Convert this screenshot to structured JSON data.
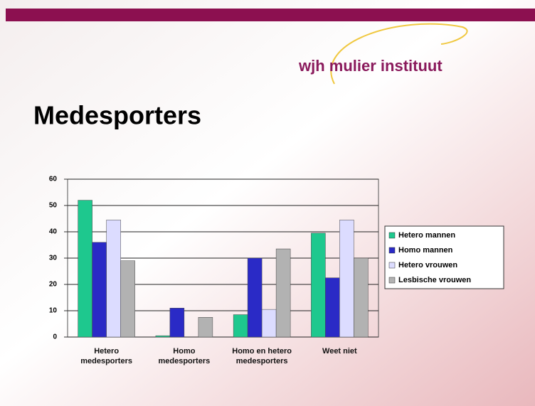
{
  "logo": "wjh mulier instituut",
  "chart_data": {
    "type": "bar",
    "title": "Medesporters",
    "categories": [
      "Hetero medesporters",
      "Homo medesporters",
      "Homo en hetero medesporters",
      "Weet niet"
    ],
    "series": [
      {
        "name": "Hetero mannen",
        "color": "#1ec88e",
        "values": [
          52,
          0.5,
          8.5,
          39.5
        ]
      },
      {
        "name": "Homo mannen",
        "color": "#2a2ac6",
        "values": [
          36,
          11,
          30,
          22.5
        ]
      },
      {
        "name": "Hetero vrouwen",
        "color": "#dcdcff",
        "values": [
          44.5,
          0,
          10.5,
          44.5
        ]
      },
      {
        "name": "Lesbische vrouwen",
        "color": "#b2b2b2",
        "values": [
          29,
          7.5,
          33.5,
          30
        ]
      }
    ],
    "ylim": [
      0,
      60
    ],
    "yticks": [
      0,
      10,
      20,
      30,
      40,
      50,
      60
    ],
    "grid": true,
    "legend": "right"
  }
}
